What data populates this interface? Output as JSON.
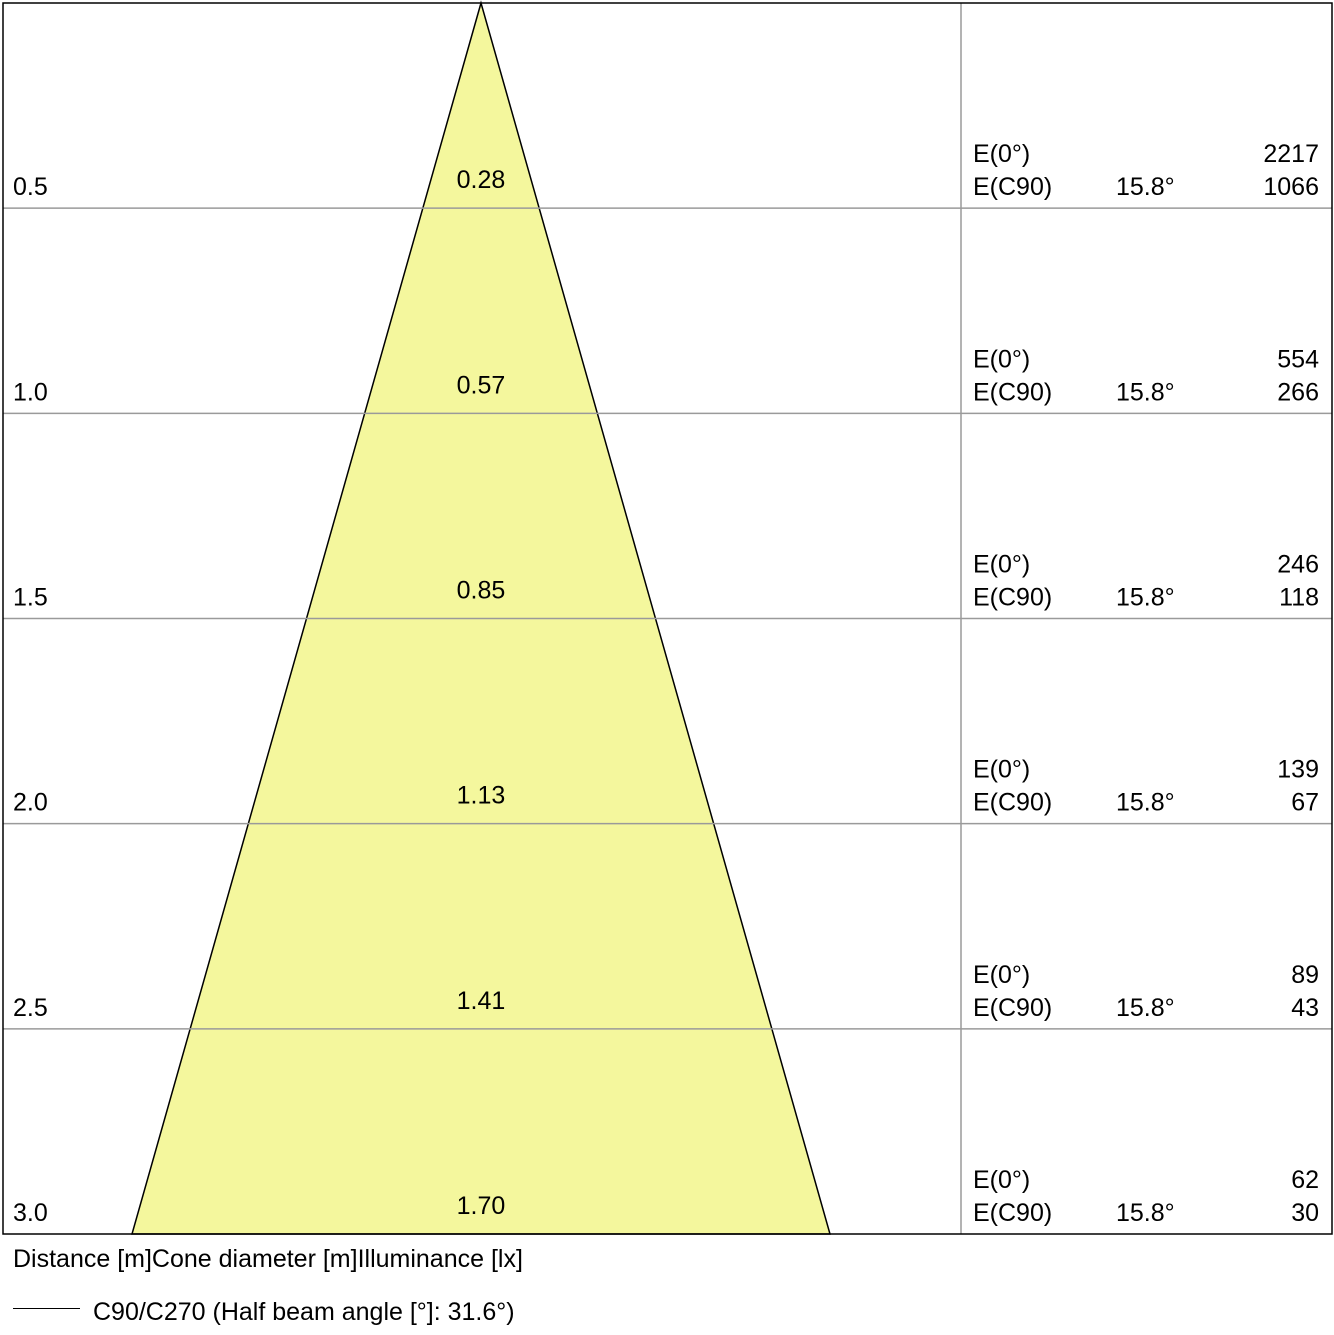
{
  "chart_data": {
    "type": "cone-diagram",
    "max_distance": 3.0,
    "cone_color": "#f4f79d",
    "rows": [
      {
        "distance": "0.5",
        "diameter": "0.28",
        "e0_label": "E(0°)",
        "e0_value": "2217",
        "ec90_label": "E(C90)",
        "angle": "15.8°",
        "ec90_value": "1066"
      },
      {
        "distance": "1.0",
        "diameter": "0.57",
        "e0_label": "E(0°)",
        "e0_value": "554",
        "ec90_label": "E(C90)",
        "angle": "15.8°",
        "ec90_value": "266"
      },
      {
        "distance": "1.5",
        "diameter": "0.85",
        "e0_label": "E(0°)",
        "e0_value": "246",
        "ec90_label": "E(C90)",
        "angle": "15.8°",
        "ec90_value": "118"
      },
      {
        "distance": "2.0",
        "diameter": "1.13",
        "e0_label": "E(0°)",
        "e0_value": "139",
        "ec90_label": "E(C90)",
        "angle": "15.8°",
        "ec90_value": "67"
      },
      {
        "distance": "2.5",
        "diameter": "1.41",
        "e0_label": "E(0°)",
        "e0_value": "89",
        "ec90_label": "E(C90)",
        "angle": "15.8°",
        "ec90_value": "43"
      },
      {
        "distance": "3.0",
        "diameter": "1.70",
        "e0_label": "E(0°)",
        "e0_value": "62",
        "ec90_label": "E(C90)",
        "angle": "15.8°",
        "ec90_value": "30"
      }
    ]
  },
  "axis_caption": "Distance [m]Cone diameter [m]Illuminance [lx]",
  "legend": {
    "label": "C90/C270 (Half beam angle [°]: 31.6°)",
    "line_color": "#000000"
  }
}
